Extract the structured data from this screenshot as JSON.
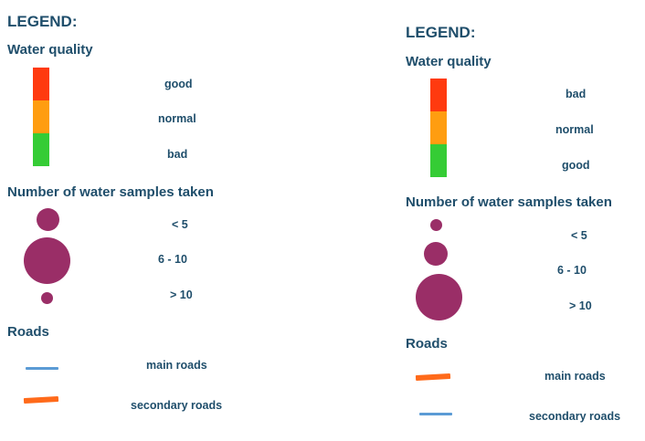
{
  "colors": {
    "text": "#1f4e6b",
    "red": "#ff3a0f",
    "orange": "#ff9d10",
    "green": "#35cc35",
    "purple": "#9a2e67",
    "blue_road": "#5b9bd5",
    "orange_road": "#ff6a1a"
  },
  "legends": [
    {
      "heading": "LEGEND:",
      "water_quality": {
        "title": "Water quality",
        "items": [
          {
            "label": "good",
            "color": "#ff3a0f"
          },
          {
            "label": "normal",
            "color": "#ff9d10"
          },
          {
            "label": "bad",
            "color": "#35cc35"
          }
        ]
      },
      "samples": {
        "title": "Number of water samples taken",
        "labels": [
          "<  5",
          "6  -  10",
          "> 10"
        ]
      },
      "roads": {
        "title": "Roads",
        "items": [
          {
            "label": "main roads",
            "color": "#5b9bd5"
          },
          {
            "label": "secondary roads",
            "color": "#ff6a1a"
          }
        ]
      }
    },
    {
      "heading": "LEGEND:",
      "water_quality": {
        "title": "Water quality",
        "items": [
          {
            "label": "bad",
            "color": "#ff3a0f"
          },
          {
            "label": "normal",
            "color": "#ff9d10"
          },
          {
            "label": "good",
            "color": "#35cc35"
          }
        ]
      },
      "samples": {
        "title": "Number of water samples taken",
        "labels": [
          "<  5",
          "6  -  10",
          "> 10"
        ]
      },
      "roads": {
        "title": "Roads",
        "items": [
          {
            "label": "main roads",
            "color": "#ff6a1a"
          },
          {
            "label": "secondary roads",
            "color": "#5b9bd5"
          }
        ]
      }
    }
  ]
}
